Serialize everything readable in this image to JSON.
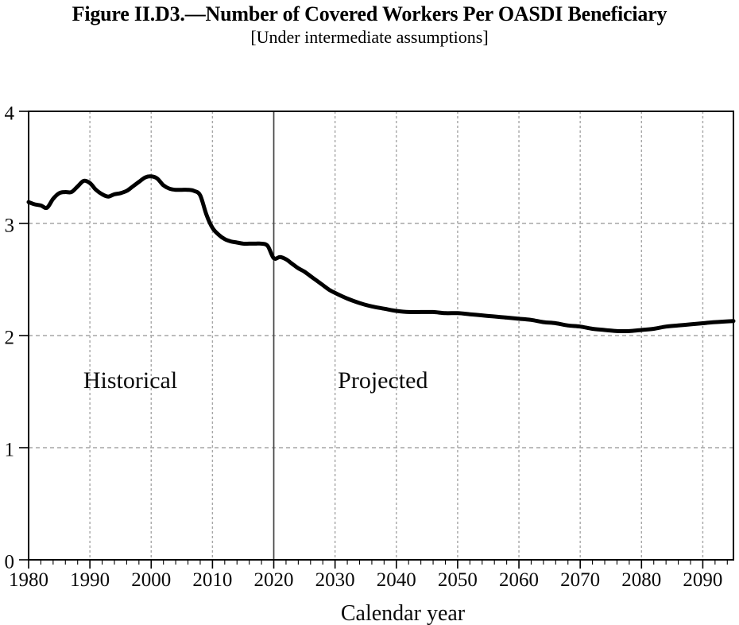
{
  "chart_data": {
    "type": "line",
    "title": "Figure II.D3.—Number of Covered Workers Per OASDI Beneficiary",
    "subtitle": "[Under intermediate assumptions]",
    "xlabel": "Calendar year",
    "ylabel": "",
    "xlim": [
      1980,
      2095
    ],
    "ylim": [
      0,
      4
    ],
    "x_ticks": [
      1980,
      1990,
      2000,
      2010,
      2020,
      2030,
      2040,
      2050,
      2060,
      2070,
      2080,
      2090
    ],
    "x_minor_step": 2,
    "y_ticks": [
      0,
      1,
      2,
      3,
      4
    ],
    "grid": {
      "x_dashed": [
        1990,
        2000,
        2010,
        2030,
        2040,
        2050,
        2060,
        2070,
        2080,
        2090
      ],
      "y_dashed": [
        1,
        2,
        3
      ],
      "divider_x": 2020,
      "grid_color": "#a6a6a6",
      "divider_color": "#444444"
    },
    "annotations": [
      {
        "label": "Historical",
        "x": 1996.6,
        "y": 1.6
      },
      {
        "label": "Projected",
        "x": 2037.8,
        "y": 1.6
      }
    ],
    "series": [
      {
        "color": "#000000",
        "points": [
          [
            1980,
            3.19
          ],
          [
            1981,
            3.17
          ],
          [
            1982,
            3.16
          ],
          [
            1983,
            3.14
          ],
          [
            1984,
            3.22
          ],
          [
            1985,
            3.27
          ],
          [
            1986,
            3.28
          ],
          [
            1987,
            3.28
          ],
          [
            1988,
            3.33
          ],
          [
            1989,
            3.38
          ],
          [
            1990,
            3.36
          ],
          [
            1991,
            3.3
          ],
          [
            1992,
            3.26
          ],
          [
            1993,
            3.24
          ],
          [
            1994,
            3.26
          ],
          [
            1995,
            3.27
          ],
          [
            1996,
            3.29
          ],
          [
            1997,
            3.33
          ],
          [
            1998,
            3.37
          ],
          [
            1999,
            3.41
          ],
          [
            2000,
            3.42
          ],
          [
            2001,
            3.4
          ],
          [
            2002,
            3.34
          ],
          [
            2003,
            3.31
          ],
          [
            2004,
            3.3
          ],
          [
            2005,
            3.3
          ],
          [
            2006,
            3.3
          ],
          [
            2007,
            3.29
          ],
          [
            2008,
            3.25
          ],
          [
            2009,
            3.08
          ],
          [
            2010,
            2.96
          ],
          [
            2011,
            2.9
          ],
          [
            2012,
            2.86
          ],
          [
            2013,
            2.84
          ],
          [
            2014,
            2.83
          ],
          [
            2015,
            2.82
          ],
          [
            2016,
            2.82
          ],
          [
            2017,
            2.82
          ],
          [
            2018,
            2.82
          ],
          [
            2019,
            2.8
          ],
          [
            2020,
            2.69
          ],
          [
            2021,
            2.7
          ],
          [
            2022,
            2.68
          ],
          [
            2023,
            2.64
          ],
          [
            2024,
            2.6
          ],
          [
            2025,
            2.57
          ],
          [
            2026,
            2.53
          ],
          [
            2027,
            2.49
          ],
          [
            2028,
            2.45
          ],
          [
            2029,
            2.41
          ],
          [
            2030,
            2.38
          ],
          [
            2032,
            2.33
          ],
          [
            2034,
            2.29
          ],
          [
            2036,
            2.26
          ],
          [
            2038,
            2.24
          ],
          [
            2040,
            2.22
          ],
          [
            2042,
            2.21
          ],
          [
            2044,
            2.21
          ],
          [
            2046,
            2.21
          ],
          [
            2048,
            2.2
          ],
          [
            2050,
            2.2
          ],
          [
            2052,
            2.19
          ],
          [
            2054,
            2.18
          ],
          [
            2056,
            2.17
          ],
          [
            2058,
            2.16
          ],
          [
            2060,
            2.15
          ],
          [
            2062,
            2.14
          ],
          [
            2064,
            2.12
          ],
          [
            2066,
            2.11
          ],
          [
            2068,
            2.09
          ],
          [
            2070,
            2.08
          ],
          [
            2072,
            2.06
          ],
          [
            2074,
            2.05
          ],
          [
            2076,
            2.04
          ],
          [
            2078,
            2.04
          ],
          [
            2080,
            2.05
          ],
          [
            2082,
            2.06
          ],
          [
            2084,
            2.08
          ],
          [
            2086,
            2.09
          ],
          [
            2088,
            2.1
          ],
          [
            2090,
            2.11
          ],
          [
            2092,
            2.12
          ],
          [
            2095,
            2.13
          ]
        ]
      }
    ],
    "legend": "none",
    "frame": true
  }
}
